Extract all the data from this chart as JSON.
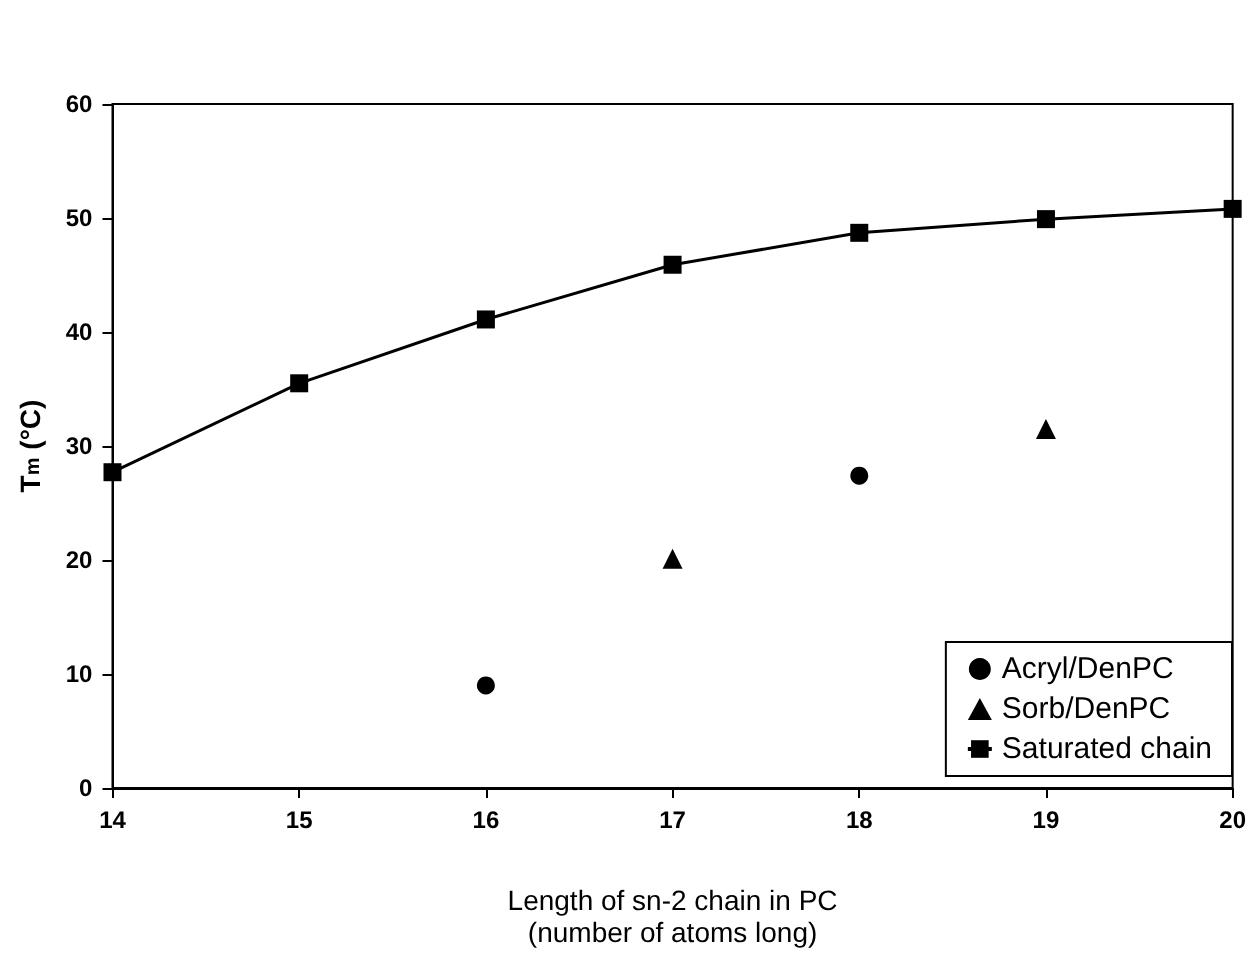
{
  "chart_data": {
    "type": "line",
    "xlabel": "Length of sn-2 chain in PC\n(number of atoms long)",
    "ylabel": "T$_{m}$ (°C)",
    "xlim": [
      14,
      20
    ],
    "xticks": [
      14,
      15,
      16,
      17,
      18,
      19,
      20
    ],
    "ylim": [
      0,
      60
    ],
    "yticks": [
      0,
      10,
      20,
      30,
      40,
      50,
      60
    ],
    "grid": false,
    "legend": "bottom right",
    "series": [
      {
        "name": "Acryl/DenPC",
        "type": "scatter",
        "marker": "circle",
        "color": "#000000",
        "x": [
          16,
          18
        ],
        "values": [
          9,
          27.4
        ]
      },
      {
        "name": "Sorb/DenPC",
        "type": "scatter",
        "marker": "triangle",
        "color": "#000000",
        "x": [
          17,
          19
        ],
        "values": [
          20.1,
          31.5
        ]
      },
      {
        "name": "Saturated chain",
        "marker": "square",
        "color": "#000000",
        "x": [
          14,
          15,
          16,
          17,
          18,
          19,
          20
        ],
        "values": [
          27.7,
          35.5,
          41.1,
          45.9,
          48.7,
          49.9,
          50.8
        ]
      }
    ]
  }
}
